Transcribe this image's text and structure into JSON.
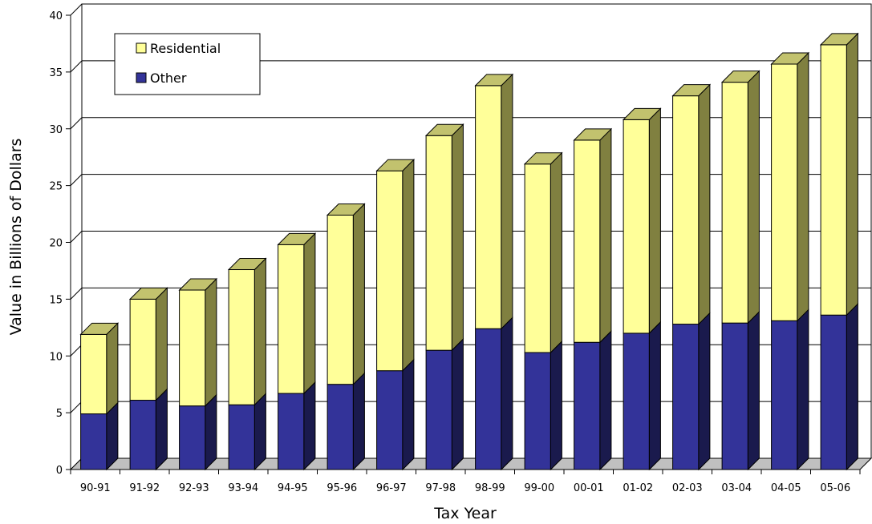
{
  "chart_data": {
    "type": "bar",
    "stacked": true,
    "style": "3d-stacked-column",
    "xlabel": "Tax Year",
    "ylabel": "Value in Billions of Dollars",
    "ylim": [
      0,
      40
    ],
    "yticks": [
      "0",
      "5",
      "10",
      "15",
      "20",
      "25",
      "30",
      "35",
      "40"
    ],
    "categories": [
      "90-91",
      "91-92",
      "92-93",
      "93-94",
      "94-95",
      "95-96",
      "96-97",
      "97-98",
      "98-99",
      "99-00",
      "00-01",
      "01-02",
      "02-03",
      "03-04",
      "04-05",
      "05-06"
    ],
    "series": [
      {
        "name": "Other",
        "color": "#333399",
        "values": [
          4.9,
          6.1,
          5.6,
          5.7,
          6.7,
          7.5,
          8.7,
          10.5,
          12.4,
          10.3,
          11.2,
          12.0,
          12.8,
          12.9,
          13.1,
          13.6
        ]
      },
      {
        "name": "Residential",
        "color": "#ffff99",
        "values": [
          7.0,
          8.9,
          10.2,
          11.9,
          13.1,
          14.9,
          17.6,
          18.9,
          21.4,
          16.6,
          17.8,
          18.8,
          20.1,
          21.2,
          22.6,
          23.8
        ]
      }
    ],
    "legend": {
      "position": "top-left",
      "entries": [
        "Residential",
        "Other"
      ]
    },
    "grid": true
  }
}
